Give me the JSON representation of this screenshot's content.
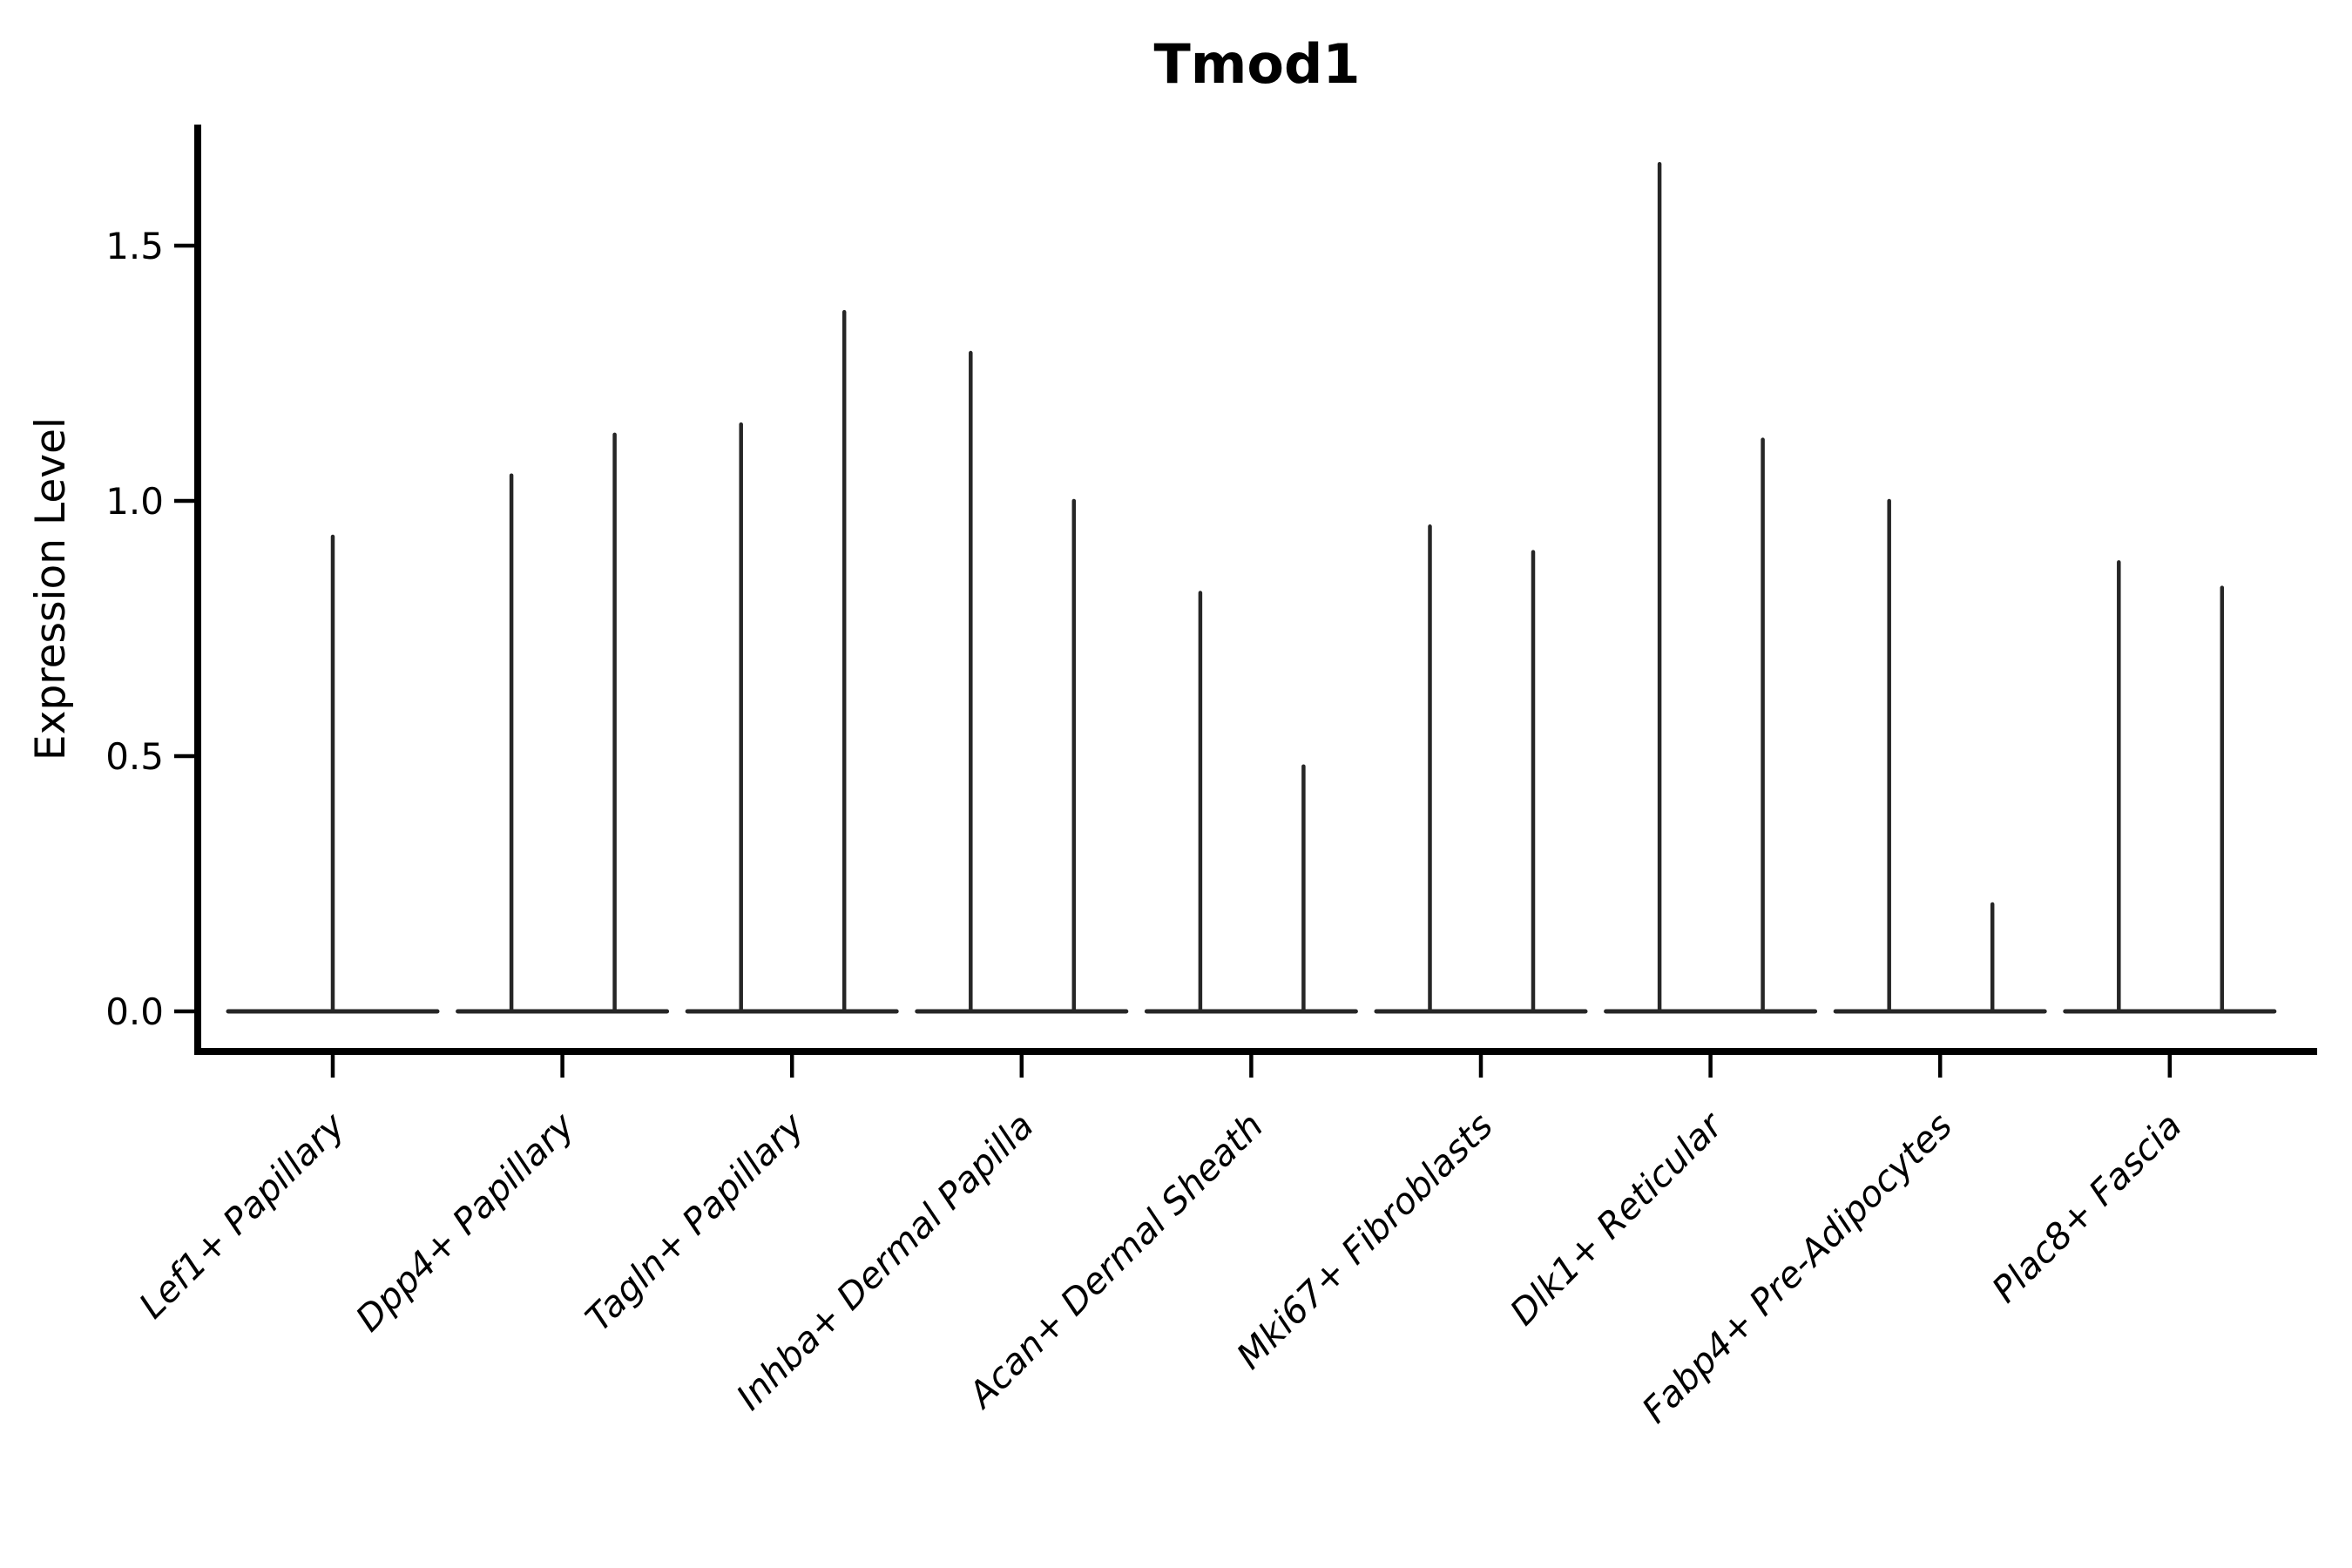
{
  "figure": {
    "title": "Tmod1",
    "background": "#ffffff"
  },
  "colors": {
    "violin_line": "#262626",
    "axis_line": "#000000",
    "text": "#000000"
  },
  "chart_data": {
    "type": "violin",
    "title": "Tmod1",
    "xlabel": "",
    "ylabel": "Expression Level",
    "ylim": [
      0,
      1.74
    ],
    "yticks": [
      0.0,
      0.5,
      1.0,
      1.5
    ],
    "ytick_labels": [
      "0.0",
      "0.5",
      "1.0",
      "1.5"
    ],
    "grid": false,
    "legend": "none",
    "description": "Zero-inflated expression violin plot: each violin collapses to a wide flat base at 0 with a thin vertical spike reaching the maximum expression value. Most categories show two violins side by side; the first category shows a single centered violin.",
    "categories": [
      "Lef1+ Papillary",
      "Dpp4+ Papillary",
      "Tagln+ Papillary",
      "Inhba+ Dermal Papilla",
      "Acan+ Dermal Sheath",
      "Mki67+ Fibroblasts",
      "Dlk1+ Reticular",
      "Fabp4+ Pre-Adipocytes",
      "Plac8+ Fascia"
    ],
    "violins": [
      {
        "category": "Lef1+ Papillary",
        "spike_max_values": [
          0.93
        ]
      },
      {
        "category": "Dpp4+ Papillary",
        "spike_max_values": [
          1.05,
          1.13
        ]
      },
      {
        "category": "Tagln+ Papillary",
        "spike_max_values": [
          1.15,
          1.37
        ]
      },
      {
        "category": "Inhba+ Dermal Papilla",
        "spike_max_values": [
          1.29,
          1.0
        ]
      },
      {
        "category": "Acan+ Dermal Sheath",
        "spike_max_values": [
          0.82,
          0.48
        ]
      },
      {
        "category": "Mki67+ Fibroblasts",
        "spike_max_values": [
          0.95,
          0.9
        ]
      },
      {
        "category": "Dlk1+ Reticular",
        "spike_max_values": [
          1.66,
          1.12
        ]
      },
      {
        "category": "Fabp4+ Pre-Adipocytes",
        "spike_max_values": [
          1.0,
          0.21
        ]
      },
      {
        "category": "Plac8+ Fascia",
        "spike_max_values": [
          0.88,
          0.83
        ]
      }
    ],
    "baseline_value": 0.0
  }
}
